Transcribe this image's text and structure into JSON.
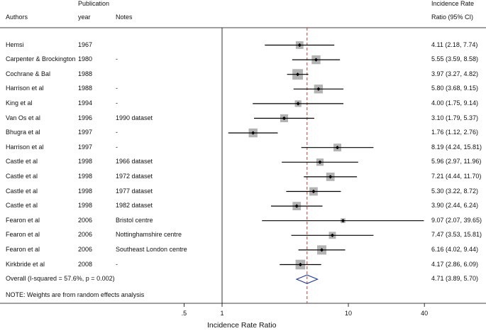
{
  "header": {
    "authors": "Authors",
    "publication": "Publication",
    "year": "year",
    "notes": "Notes",
    "irr_line1": "Incidence Rate",
    "irr_line2": "Ratio (95% CI)"
  },
  "footer_note": "NOTE: Weights are from random effects analysis",
  "chart_data": {
    "type": "forest",
    "xlabel": "Incidence Rate Ratio",
    "x_scale": "log",
    "xlim": [
      0.33,
      40
    ],
    "ticks": [
      {
        "value": 0.5,
        "label": ".5"
      },
      {
        "value": 1,
        "label": "1"
      },
      {
        "value": 10,
        "label": "10"
      },
      {
        "value": 40,
        "label": "40"
      }
    ],
    "reference_line": 1,
    "overall_line": 4.71,
    "rows": [
      {
        "author": "Hemsi",
        "year": "1967",
        "note": "",
        "est": 4.11,
        "lo": 2.18,
        "hi": 7.74,
        "weight": 6.2,
        "ci_text": "4.11 (2.18, 7.74)"
      },
      {
        "author": "Carpenter & Brockington",
        "year": "1980",
        "note": "-",
        "est": 5.55,
        "lo": 3.59,
        "hi": 8.58,
        "weight": 7.5,
        "ci_text": "5.55 (3.59, 8.58)"
      },
      {
        "author": "Cochrane & Bal",
        "year": "1988",
        "note": "",
        "est": 3.97,
        "lo": 3.27,
        "hi": 4.82,
        "weight": 9.5,
        "ci_text": "3.97 (3.27, 4.82)"
      },
      {
        "author": "Harrison et al",
        "year": "1988",
        "note": "-",
        "est": 5.8,
        "lo": 3.68,
        "hi": 9.15,
        "weight": 7.5,
        "ci_text": "5.80 (3.68, 9.15)"
      },
      {
        "author": "King et al",
        "year": "1994",
        "note": "-",
        "est": 4.0,
        "lo": 1.75,
        "hi": 9.14,
        "weight": 5.0,
        "ci_text": "4.00 (1.75, 9.14)"
      },
      {
        "author": "Van Os et al",
        "year": "1996",
        "note": "1990 dataset",
        "est": 3.1,
        "lo": 1.79,
        "hi": 5.37,
        "weight": 6.5,
        "ci_text": "3.10 (1.79, 5.37)"
      },
      {
        "author": "Bhugra et al",
        "year": "1997",
        "note": "-",
        "est": 1.76,
        "lo": 1.12,
        "hi": 2.76,
        "weight": 7.5,
        "ci_text": "1.76 (1.12, 2.76)"
      },
      {
        "author": "Harrison et al",
        "year": "1997",
        "note": "-",
        "est": 8.19,
        "lo": 4.24,
        "hi": 15.81,
        "weight": 6.3,
        "ci_text": "8.19 (4.24, 15.81)"
      },
      {
        "author": "Castle et al",
        "year": "1998",
        "note": "1966 dataset",
        "est": 5.96,
        "lo": 2.97,
        "hi": 11.96,
        "weight": 5.8,
        "ci_text": "5.96 (2.97, 11.96)"
      },
      {
        "author": "Castle et al",
        "year": "1998",
        "note": "1972 dataset",
        "est": 7.21,
        "lo": 4.44,
        "hi": 11.7,
        "weight": 7.0,
        "ci_text": "7.21 (4.44, 11.70)"
      },
      {
        "author": "Castle et al",
        "year": "1998",
        "note": "1977 dataset",
        "est": 5.3,
        "lo": 3.22,
        "hi": 8.72,
        "weight": 7.0,
        "ci_text": "5.30 (3.22, 8.72)"
      },
      {
        "author": "Castle et al",
        "year": "1998",
        "note": "1982 dataset",
        "est": 3.9,
        "lo": 2.44,
        "hi": 6.24,
        "weight": 7.0,
        "ci_text": "3.90 (2.44, 6.24)"
      },
      {
        "author": "Fearon et al",
        "year": "2006",
        "note": "Bristol centre",
        "est": 9.07,
        "lo": 2.07,
        "hi": 39.65,
        "weight": 3.0,
        "ci_text": "9.07 (2.07, 39.65)"
      },
      {
        "author": "Fearon et al",
        "year": "2006",
        "note": "Nottinghamshire centre",
        "est": 7.47,
        "lo": 3.53,
        "hi": 15.81,
        "weight": 5.5,
        "ci_text": "7.47 (3.53, 15.81)"
      },
      {
        "author": "Fearon et al",
        "year": "2006",
        "note": "Southeast London centre",
        "est": 6.16,
        "lo": 4.02,
        "hi": 9.44,
        "weight": 8.0,
        "ci_text": "6.16 (4.02, 9.44)"
      },
      {
        "author": "Kirkbride et al",
        "year": "2008",
        "note": "-",
        "est": 4.17,
        "lo": 2.86,
        "hi": 6.09,
        "weight": 8.5,
        "ci_text": "4.17 (2.86, 6.09)"
      }
    ],
    "overall": {
      "label": "Overall  (I-squared = 57.6%, p = 0.002)",
      "est": 4.71,
      "lo": 3.89,
      "hi": 5.7,
      "ci_text": "4.71 (3.89, 5.70)"
    },
    "colors": {
      "box": "#b3b3b3",
      "line": "#000000",
      "overall_line": "#c0392b",
      "diamond": "#1f3a93"
    }
  }
}
